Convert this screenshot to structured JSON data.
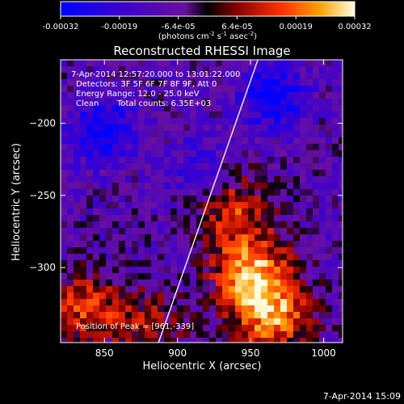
{
  "chart_data": {
    "type": "heatmap",
    "title": "Reconstructed RHESSI Image",
    "xlabel": "Heliocentric X (arcsec)",
    "ylabel": "Heliocentric Y (arcsec)",
    "xlim": [
      820,
      1013
    ],
    "ylim": [
      -352,
      -156
    ],
    "x_ticks": [
      850,
      900,
      950,
      1000
    ],
    "y_ticks": [
      -200,
      -250,
      -300
    ],
    "colorbar": {
      "min": -0.00032,
      "max": 0.00032,
      "ticks": [
        "-0.00032",
        "-0.00019",
        "-6.4e-05",
        "6.4e-05",
        "0.00019",
        "0.00032"
      ],
      "unit_text": "(photons cm",
      "unit_sup1": "-2",
      "unit_mid": " s",
      "unit_sup2": "-1",
      "unit_mid2": " asec",
      "unit_sup3": "-2",
      "unit_end": ")"
    },
    "annotations": {
      "time_range": "7-Apr-2014 12:57:20.000 to 13:01:22.000",
      "detectors": "Detectors: 3F 5F 6F 7F 8F 9F, Att 0",
      "energy_range": "Energy Range: 12.0 - 25.0 keV",
      "clean": "Clean",
      "total_counts": "Total counts: 6.35E+03",
      "peak": "Position of Peak = [961,-339]"
    },
    "peak_position": [
      961,
      -339
    ],
    "bright_regions": [
      {
        "x": 950,
        "y": -305,
        "intensity": 0.00032
      },
      {
        "x": 965,
        "y": -335,
        "intensity": 0.00028
      },
      {
        "x": 940,
        "y": -260,
        "intensity": 0.0002
      },
      {
        "x": 835,
        "y": -330,
        "intensity": 0.00022
      },
      {
        "x": 880,
        "y": -340,
        "intensity": 0.00015
      }
    ],
    "limb_line": [
      [
        887,
        -352
      ],
      [
        955,
        -156
      ]
    ],
    "grid": false
  },
  "footer": {
    "date_time": "7-Apr-2014 15:09"
  }
}
